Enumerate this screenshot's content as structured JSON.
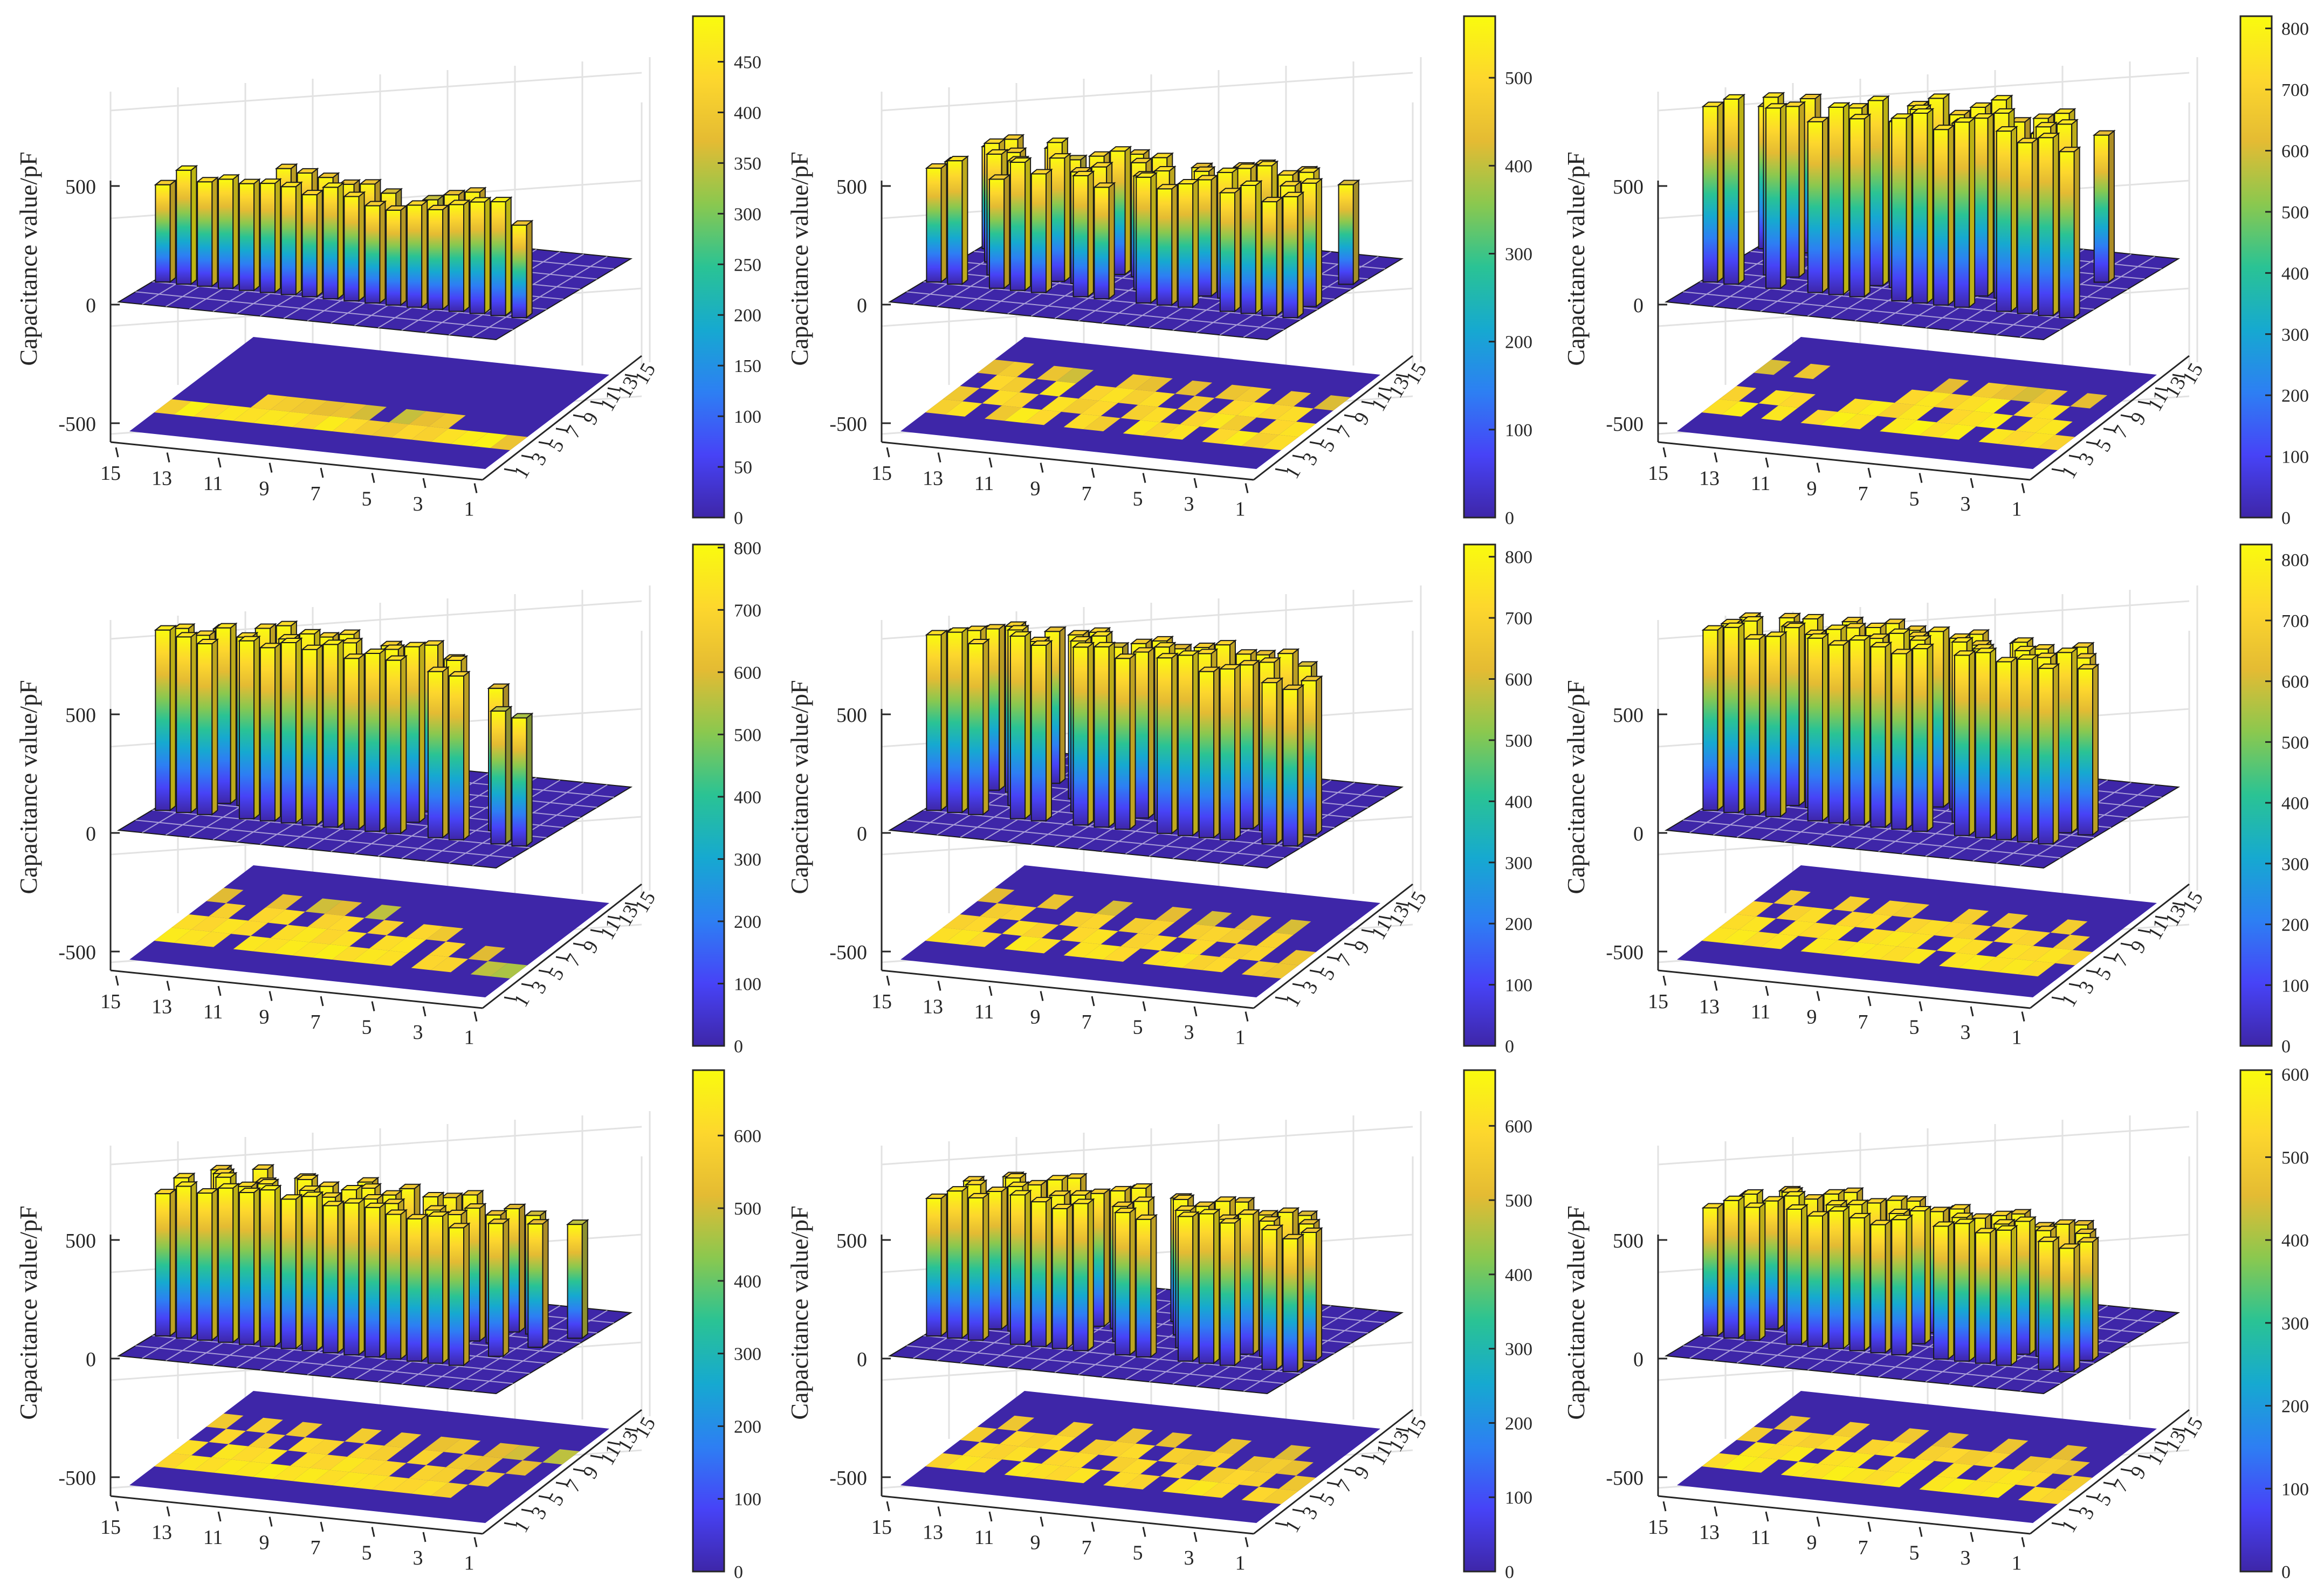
{
  "figure": {
    "colormap": [
      "#3e26a8",
      "#4743f7",
      "#2d7ff3",
      "#16a9d0",
      "#2ac394",
      "#8ac84f",
      "#e4bb33",
      "#fdd72d",
      "#f9fb0e"
    ],
    "background": "#ffffff",
    "floor_color": "#3e26a8"
  },
  "chart_data": [
    {
      "type": "bar3d",
      "ylabel": "Capacitance value/pF",
      "z_ticks": [
        500,
        0,
        -500
      ],
      "x_ticks": [
        "15",
        "13",
        "11",
        "9",
        "7",
        "5",
        "3",
        "1"
      ],
      "y_ticks": [
        "1",
        "3",
        "5",
        "7",
        "9",
        "11",
        "13",
        "15"
      ],
      "colorbar": {
        "min": 0,
        "max": 495,
        "ticks": [
          0,
          50,
          100,
          150,
          200,
          250,
          300,
          350,
          400,
          450
        ]
      },
      "grid": true,
      "rows": 2,
      "row_values": [
        [
          410,
          480,
          440,
          460,
          450,
          460,
          455,
          430,
          470,
          440,
          410,
          400,
          430,
          420,
          450,
          470,
          480,
          390
        ],
        [
          0,
          0,
          0,
          0,
          420,
          410,
          400,
          380,
          390,
          360,
          0,
          350,
          380,
          400,
          0,
          0,
          0,
          0
        ]
      ]
    },
    {
      "type": "bar3d",
      "ylabel": "Capacitance value/pF",
      "z_ticks": [
        500,
        0,
        -500
      ],
      "x_ticks": [
        "15",
        "13",
        "11",
        "9",
        "7",
        "5",
        "3",
        "1"
      ],
      "y_ticks": [
        "1",
        "3",
        "5",
        "7",
        "9",
        "11",
        "13",
        "15"
      ],
      "colorbar": {
        "min": 0,
        "max": 570,
        "ticks": [
          0,
          100,
          200,
          300,
          400,
          500
        ]
      },
      "grid": true,
      "rows": 4,
      "row_values": [
        [
          480,
          520,
          0,
          460,
          540,
          500,
          0,
          510,
          470,
          0,
          530,
          490,
          520,
          0,
          500,
          540,
          480,
          510
        ],
        [
          460,
          0,
          510,
          490,
          0,
          520,
          470,
          500,
          0,
          480,
          510,
          0,
          490,
          530,
          470,
          0,
          500,
          520
        ],
        [
          0,
          500,
          470,
          0,
          530,
          0,
          490,
          520,
          480,
          510,
          0,
          470,
          0,
          500,
          520,
          490,
          510,
          0
        ],
        [
          430,
          470,
          0,
          450,
          410,
          0,
          0,
          460,
          440,
          0,
          430,
          0,
          450,
          470,
          0,
          460,
          0,
          420
        ]
      ]
    },
    {
      "type": "bar3d",
      "ylabel": "Capacitance value/pF",
      "z_ticks": [
        500,
        0,
        -500
      ],
      "x_ticks": [
        "15",
        "13",
        "11",
        "9",
        "7",
        "5",
        "3",
        "1"
      ],
      "y_ticks": [
        "1",
        "3",
        "5",
        "7",
        "9",
        "11",
        "13",
        "15"
      ],
      "colorbar": {
        "min": 0,
        "max": 820,
        "ticks": [
          0,
          100,
          200,
          300,
          400,
          500,
          600,
          700,
          800
        ]
      },
      "grid": true,
      "rows": 4,
      "row_values": [
        [
          740,
          780,
          0,
          760,
          0,
          720,
          790,
          750,
          0,
          770,
          800,
          740,
          780,
          0,
          760,
          720,
          750,
          700
        ],
        [
          700,
          0,
          750,
          720,
          0,
          0,
          740,
          780,
          700,
          760,
          0,
          720,
          750,
          780,
          0,
          740,
          760,
          0
        ],
        [
          0,
          0,
          0,
          0,
          0,
          0,
          0,
          0,
          720,
          760,
          700,
          740,
          780,
          0,
          720,
          750,
          0,
          0
        ],
        [
          600,
          0,
          650,
          0,
          0,
          0,
          0,
          0,
          0,
          620,
          0,
          680,
          640,
          600,
          660,
          0,
          620,
          0
        ]
      ]
    },
    {
      "type": "bar3d",
      "ylabel": "Capacitance value/pF",
      "z_ticks": [
        500,
        0,
        -500
      ],
      "x_ticks": [
        "15",
        "13",
        "11",
        "9",
        "7",
        "5",
        "3",
        "1"
      ],
      "y_ticks": [
        "1",
        "3",
        "5",
        "7",
        "9",
        "11",
        "13",
        "15"
      ],
      "colorbar": {
        "min": 0,
        "max": 805,
        "ticks": [
          0,
          100,
          200,
          300,
          400,
          500,
          600,
          700,
          800
        ]
      },
      "grid": true,
      "rows": 4,
      "row_values": [
        [
          760,
          740,
          720,
          0,
          750,
          730,
          760,
          740,
          770,
          720,
          750,
          730,
          0,
          700,
          690,
          0,
          560,
          540
        ],
        [
          720,
          700,
          740,
          710,
          0,
          720,
          750,
          700,
          730,
          0,
          720,
          740,
          0,
          700,
          0,
          600,
          0,
          0
        ],
        [
          0,
          680,
          0,
          700,
          720,
          0,
          690,
          710,
          0,
          680,
          0,
          700,
          650,
          0,
          0,
          0,
          0,
          0
        ],
        [
          600,
          0,
          0,
          620,
          0,
          580,
          600,
          0,
          560,
          0,
          0,
          0,
          0,
          0,
          0,
          0,
          0,
          0
        ]
      ]
    },
    {
      "type": "bar3d",
      "ylabel": "Capacitance value/pF",
      "z_ticks": [
        500,
        0,
        -500
      ],
      "x_ticks": [
        "15",
        "13",
        "11",
        "9",
        "7",
        "5",
        "3",
        "1"
      ],
      "y_ticks": [
        "1",
        "3",
        "5",
        "7",
        "9",
        "11",
        "13",
        "15"
      ],
      "colorbar": {
        "min": 0,
        "max": 820,
        "ticks": [
          0,
          100,
          200,
          300,
          400,
          500,
          600,
          700,
          800
        ]
      },
      "grid": true,
      "rows": 4,
      "row_values": [
        [
          740,
          760,
          720,
          0,
          770,
          740,
          0,
          750,
          760,
          720,
          0,
          740,
          760,
          700,
          720,
          0,
          680,
          660
        ],
        [
          700,
          720,
          0,
          740,
          700,
          0,
          720,
          750,
          0,
          700,
          730,
          0,
          720,
          0,
          690,
          710,
          0,
          650
        ],
        [
          0,
          680,
          700,
          0,
          0,
          690,
          710,
          0,
          680,
          700,
          0,
          690,
          710,
          680,
          0,
          700,
          0,
          0
        ],
        [
          620,
          0,
          0,
          640,
          0,
          0,
          600,
          0,
          0,
          620,
          0,
          600,
          0,
          630,
          0,
          600,
          0,
          0
        ]
      ]
    },
    {
      "type": "bar3d",
      "ylabel": "Capacitance value/pF",
      "z_ticks": [
        500,
        0,
        -500
      ],
      "x_ticks": [
        "15",
        "13",
        "11",
        "9",
        "7",
        "5",
        "3",
        "1"
      ],
      "y_ticks": [
        "1",
        "3",
        "5",
        "7",
        "9",
        "11",
        "13",
        "15"
      ],
      "colorbar": {
        "min": 0,
        "max": 825,
        "ticks": [
          0,
          100,
          200,
          300,
          400,
          500,
          600,
          700,
          800
        ]
      },
      "grid": true,
      "rows": 4,
      "row_values": [
        [
          760,
          780,
          740,
          760,
          0,
          770,
          750,
          780,
          760,
          740,
          770,
          0,
          760,
          780,
          750,
          770,
          740,
          0
        ],
        [
          740,
          760,
          0,
          750,
          730,
          760,
          0,
          740,
          770,
          750,
          0,
          760,
          740,
          0,
          750,
          730,
          760,
          700
        ],
        [
          720,
          0,
          700,
          740,
          0,
          720,
          730,
          0,
          710,
          740,
          720,
          700,
          0,
          730,
          710,
          0,
          690,
          0
        ],
        [
          0,
          680,
          0,
          0,
          690,
          0,
          700,
          680,
          0,
          0,
          690,
          0,
          670,
          0,
          0,
          680,
          0,
          0
        ]
      ]
    },
    {
      "type": "bar3d",
      "ylabel": "Capacitance value/pF",
      "z_ticks": [
        500,
        0,
        -500
      ],
      "x_ticks": [
        "15",
        "13",
        "11",
        "9",
        "7",
        "5",
        "3",
        "1"
      ],
      "y_ticks": [
        "1",
        "3",
        "5",
        "7",
        "9",
        "11",
        "13",
        "15"
      ],
      "colorbar": {
        "min": 0,
        "max": 690,
        "ticks": [
          0,
          100,
          200,
          300,
          400,
          500,
          600
        ]
      },
      "grid": true,
      "rows": 4,
      "row_values": [
        [
          600,
          640,
          620,
          650,
          640,
          660,
          630,
          650,
          620,
          640,
          630,
          610,
          600,
          620,
          580,
          0,
          0,
          0
        ],
        [
          620,
          0,
          640,
          610,
          630,
          0,
          620,
          600,
          640,
          610,
          600,
          0,
          590,
          580,
          0,
          560,
          0,
          0
        ],
        [
          0,
          600,
          0,
          580,
          0,
          610,
          590,
          0,
          600,
          580,
          0,
          590,
          0,
          560,
          540,
          0,
          520,
          0
        ],
        [
          560,
          0,
          580,
          0,
          560,
          0,
          0,
          570,
          0,
          560,
          0,
          540,
          560,
          0,
          520,
          500,
          0,
          480
        ]
      ]
    },
    {
      "type": "bar3d",
      "ylabel": "Capacitance value/pF",
      "z_ticks": [
        500,
        0,
        -500
      ],
      "x_ticks": [
        "15",
        "13",
        "11",
        "9",
        "7",
        "5",
        "3",
        "1"
      ],
      "y_ticks": [
        "1",
        "3",
        "5",
        "7",
        "9",
        "11",
        "13",
        "15"
      ],
      "colorbar": {
        "min": 0,
        "max": 675,
        "ticks": [
          0,
          100,
          200,
          300,
          400,
          500,
          600
        ]
      },
      "grid": true,
      "rows": 4,
      "row_values": [
        [
          580,
          620,
          600,
          0,
          630,
          610,
          590,
          620,
          0,
          600,
          580,
          0,
          610,
          630,
          600,
          0,
          590,
          560
        ],
        [
          0,
          600,
          580,
          610,
          0,
          590,
          600,
          0,
          570,
          600,
          0,
          580,
          0,
          560,
          590,
          570,
          0,
          540
        ],
        [
          560,
          0,
          590,
          570,
          600,
          0,
          560,
          580,
          600,
          0,
          570,
          550,
          580,
          0,
          540,
          560,
          520,
          0
        ],
        [
          0,
          540,
          0,
          0,
          560,
          0,
          0,
          540,
          0,
          520,
          0,
          0,
          530,
          0,
          0,
          500,
          0,
          0
        ]
      ]
    },
    {
      "type": "bar3d",
      "ylabel": "Capacitance value/pF",
      "z_ticks": [
        500,
        0,
        -500
      ],
      "x_ticks": [
        "15",
        "13",
        "11",
        "9",
        "7",
        "5",
        "3",
        "1"
      ],
      "y_ticks": [
        "1",
        "3",
        "5",
        "7",
        "9",
        "11",
        "13",
        "15"
      ],
      "colorbar": {
        "min": 0,
        "max": 605,
        "ticks": [
          0,
          100,
          200,
          300,
          400,
          500,
          600
        ]
      },
      "grid": true,
      "rows": 4,
      "row_values": [
        [
          540,
          580,
          560,
          0,
          570,
          550,
          580,
          560,
          540,
          570,
          0,
          560,
          580,
          550,
          570,
          0,
          540,
          520
        ],
        [
          0,
          560,
          540,
          570,
          0,
          550,
          560,
          0,
          540,
          560,
          0,
          550,
          0,
          540,
          560,
          530,
          0,
          500
        ],
        [
          500,
          0,
          530,
          510,
          540,
          0,
          520,
          540,
          0,
          510,
          530,
          500,
          520,
          0,
          490,
          510,
          480,
          0
        ],
        [
          0,
          480,
          0,
          0,
          500,
          0,
          0,
          490,
          0,
          470,
          0,
          0,
          480,
          0,
          0,
          460,
          0,
          0
        ]
      ]
    }
  ]
}
